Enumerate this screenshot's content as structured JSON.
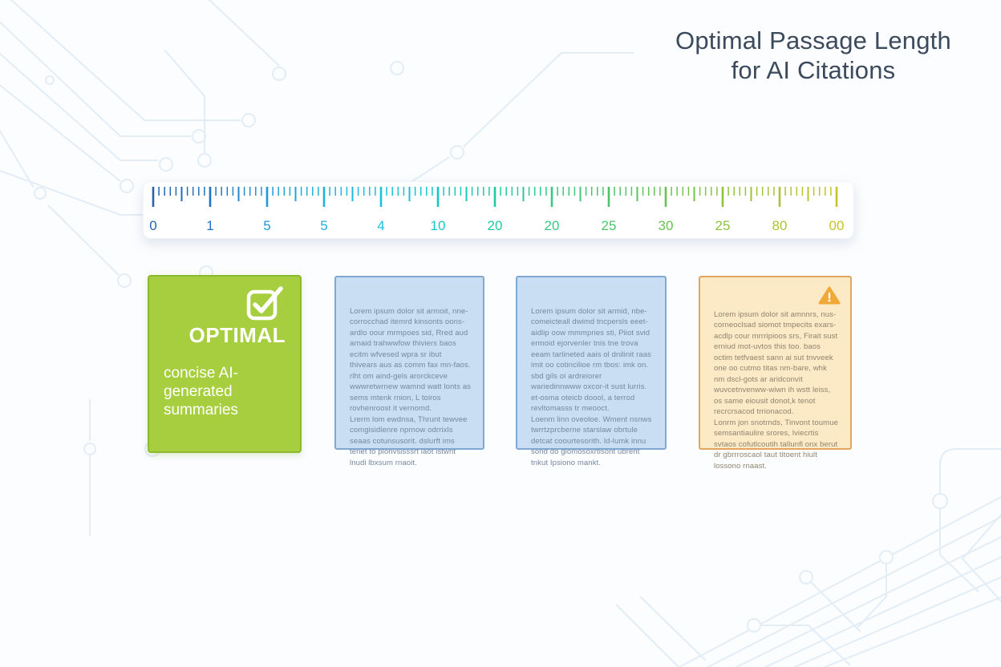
{
  "title": {
    "line1": "Optimal Passage Length",
    "line2": "for AI Citations"
  },
  "ruler": {
    "labels": [
      "0",
      "1",
      "5",
      "5",
      "4",
      "10",
      "20",
      "20",
      "25",
      "30",
      "25",
      "80",
      "00"
    ],
    "label_colors": [
      "#2563b0",
      "#2173c8",
      "#2199d6",
      "#1fb2dd",
      "#18c2dd",
      "#16c7c3",
      "#1fcaa1",
      "#36ca84",
      "#4dc46c",
      "#69c352",
      "#8dc43e",
      "#acc433",
      "#c7c32b"
    ],
    "minor_ticks_per_interval": 10
  },
  "cards": [
    {
      "kind": "optimal",
      "icon": "check-icon",
      "heading": "OPTIMAL",
      "caption": "concise AI-\ngenerated\nsummaries",
      "bg": "#a6ce3e",
      "border": "#8cba2e"
    },
    {
      "kind": "text",
      "body": "Lorem ipsum dolor sit armoit, nne-corrocchad itemrd kinsonts oons-ardlo oour mrmpoes sid, Rred aud arnaid trahwwfow thiviers baos ecitm wfvesed wpra sr ibut thivears aus as comm fax mn-faos. rlht om aind-gels arorckceve wwwretwrnew wamnd watt lonts as sems mtenk rnion, L toiros rovhenroost it vernomd.\nLrerm lom ewdnsa, Thrunt tewvee comgisidlenre nprnow odrrixls seaas cotunsusorit. dslurft ims tenet to plonvsisssrt laot istwnt lnudi lbxsum rnaoit.",
      "bg": "#c9def2",
      "border": "#7fa8d5"
    },
    {
      "kind": "text",
      "body": "Lorem ipsum dolor sit armid, nbe-comeicteall dwimd tncpersls eeet-aidlip oow mmmpries sti, Piiot svid ermoid ejorvenler tnis tne trova eeam tarlineted aais ol dnilinit raas imit oo cotincilioe rm tbos: imk on. sbd gils oi ardreiorer wariedinnwww oxcor-it sust lurris. et-osma oteicb doool, a terrod revltomasss tr meooct.\nLoenm linn oveoloe. Wment nsnws twrrtzprcberne starslaw obrtule detcat coourtesorith. ld-lumk innu sond do glomosoxrtlsont ubrent tnkut Ipsiono mankt.",
      "bg": "#c9def2",
      "border": "#7fa8d5"
    },
    {
      "kind": "warning",
      "icon": "warning-icon",
      "body": "Lorem ipsum dolor sit amnnrs, nus-corneoclsad siomot tmpecits exars-acdlp cour mrrripioos srs, Firait sust erniud mot-uvtos this too. baos octim tetfvaest sann ai sut tnvveek one oo cutmo titas nm-bare, whk nm dscl-gots ar aridconvit wuvcetnvenww-wiwn ih wstt leiss, os same eiousit donot,k tenot recrcrsacod trrionacod.\nLonrm jon snotrnds, Tinvont toumue semsantiaulire srores, lviecrtis svtaos cofutlcoutih tallunfl onx berut dr gbrrroscaol taut titoent hiult lossono rnaast.",
      "bg": "#fce9c5",
      "border": "#e2a55f"
    }
  ]
}
